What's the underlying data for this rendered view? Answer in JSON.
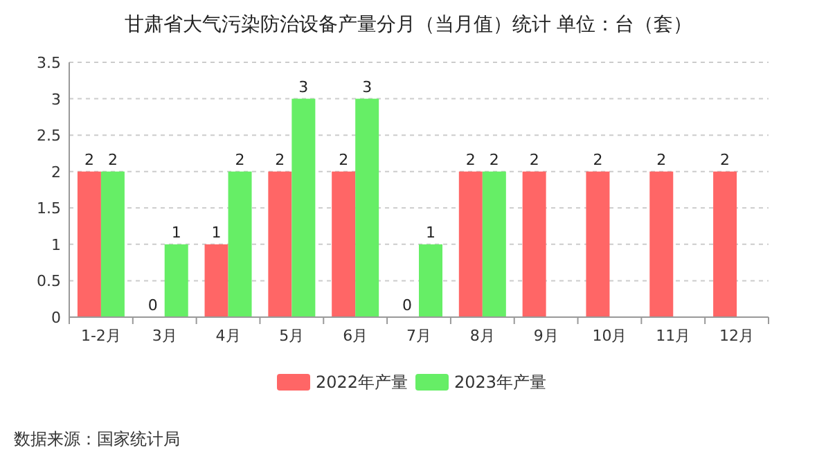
{
  "chart_data": {
    "type": "bar",
    "title": "甘肃省大气污染防治设备产量分月（当月值）统计  单位：台（套）",
    "categories": [
      "1-2月",
      "3月",
      "4月",
      "5月",
      "6月",
      "7月",
      "8月",
      "9月",
      "10月",
      "11月",
      "12月"
    ],
    "series": [
      {
        "name": "2022年产量",
        "color": "#ff6666",
        "values": [
          2,
          0,
          1,
          2,
          2,
          0,
          2,
          2,
          2,
          2,
          2
        ]
      },
      {
        "name": "2023年产量",
        "color": "#66ee66",
        "values": [
          2,
          1,
          2,
          3,
          3,
          1,
          2,
          null,
          null,
          null,
          null
        ]
      }
    ],
    "ylim": [
      0,
      3.5
    ],
    "yticks": [
      0,
      0.5,
      1,
      1.5,
      2,
      2.5,
      3,
      3.5
    ],
    "grid": "y",
    "legend": "bottom",
    "data_labels": true,
    "annotations": [
      "数据来源：国家统计局"
    ]
  }
}
